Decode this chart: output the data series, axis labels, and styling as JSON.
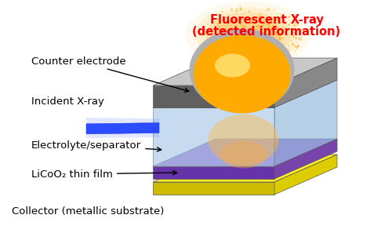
{
  "background_color": "#ffffff",
  "labels": {
    "counter_electrode": "Counter electrode",
    "incident_xray": "Incident X-ray",
    "electrolyte": "Electrolyte/separator",
    "licoO2": "LiCoO₂ thin film",
    "collector": "Collector (metallic substrate)",
    "fluorescent_line1": "Fluorescent X-ray",
    "fluorescent_line2": "(detected information)"
  },
  "colors": {
    "gray_top_light": "#c8c8c8",
    "gray_top_mid": "#b0b0b0",
    "gray_right": "#888888",
    "gray_dark": "#606060",
    "blue_top": "#c8dff0",
    "blue_front": "#a8c8e8",
    "blue_right": "#90b8dc",
    "purple_top": "#9966cc",
    "purple_right": "#7744aa",
    "purple_front": "#6633aa",
    "yellow_top": "#ffee22",
    "yellow_right": "#ddcc00",
    "yellow_front": "#ccbb00",
    "gold_bright": "#ffaa00",
    "gold_light": "#ffcc44",
    "gold_glow1": "#ffe090",
    "gold_glow2": "#ffd060",
    "blue_ray": "#2244ff",
    "blue_ray_edge": "#1122cc",
    "fluorescent_text": "#ff0000",
    "label_text": "#000000"
  },
  "figsize": [
    5.0,
    2.97
  ],
  "dpi": 100
}
